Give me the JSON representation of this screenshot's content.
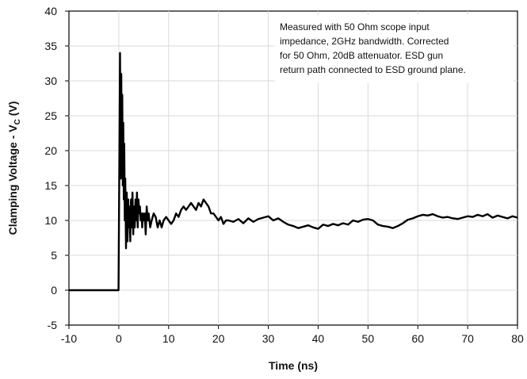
{
  "chart_data": {
    "type": "line",
    "title": "",
    "xlabel": "Time (ns)",
    "ylabel": {
      "prefix": "Clamping Voltage - V",
      "subscript": "C",
      "suffix": " (V)"
    },
    "xlim": [
      -10,
      80
    ],
    "ylim": [
      -5,
      40
    ],
    "x_ticks": [
      -10,
      0,
      10,
      20,
      30,
      40,
      50,
      60,
      70,
      80
    ],
    "y_ticks": [
      -5,
      0,
      5,
      10,
      15,
      20,
      25,
      30,
      35,
      40
    ],
    "grid": true,
    "legend": "none",
    "annotation": [
      "Measured with 50 Ohm scope input",
      "impedance, 2GHz bandwidth. Corrected",
      "for 50 Ohm, 20dB attenuator. ESD gun",
      "return path connected to ESD ground plane."
    ],
    "series": [
      {
        "color": "#000000",
        "x": [
          -10,
          -0.3,
          -0.05,
          0.1,
          0.25,
          0.4,
          0.5,
          0.6,
          0.7,
          0.8,
          0.9,
          1.0,
          1.1,
          1.2,
          1.3,
          1.45,
          1.6,
          1.75,
          1.9,
          2.0,
          2.15,
          2.3,
          2.45,
          2.6,
          2.75,
          2.9,
          3.05,
          3.2,
          3.35,
          3.5,
          3.65,
          3.8,
          3.95,
          4.1,
          4.25,
          4.4,
          4.55,
          4.7,
          4.85,
          5.0,
          5.2,
          5.4,
          5.6,
          5.8,
          6.0,
          6.3,
          6.6,
          7.0,
          7.4,
          7.8,
          8.2,
          8.6,
          9.0,
          9.5,
          10,
          10.5,
          11,
          11.5,
          12,
          12.5,
          13,
          13.5,
          14,
          14.5,
          15,
          15.5,
          16,
          16.5,
          17,
          17.5,
          18,
          18.5,
          19,
          19.5,
          20,
          20.5,
          21,
          21.5,
          22,
          23,
          24,
          25,
          26,
          27,
          28,
          29,
          30,
          31,
          32,
          33,
          34,
          35,
          36,
          37,
          38,
          39,
          40,
          41,
          42,
          43,
          44,
          45,
          46,
          47,
          48,
          49,
          50,
          51,
          52,
          53,
          54,
          55,
          56,
          57,
          58,
          59,
          60,
          61,
          62,
          63,
          64,
          65,
          66,
          67,
          68,
          69,
          70,
          71,
          72,
          73,
          74,
          75,
          76,
          77,
          78,
          79,
          80
        ],
        "y": [
          0,
          0,
          0,
          17,
          34,
          16,
          31,
          17,
          28,
          15,
          24,
          13,
          21,
          10,
          16,
          6,
          14,
          7,
          13,
          9,
          12,
          7,
          13,
          9,
          14,
          8,
          12,
          9,
          13,
          10,
          14,
          9,
          13,
          11,
          12,
          10,
          11,
          9,
          11,
          10,
          11,
          8,
          12,
          10,
          11,
          9,
          10,
          11,
          10.5,
          9,
          10,
          9,
          10,
          10.5,
          10,
          9.5,
          10,
          11,
          10.5,
          11.5,
          12,
          11.5,
          12,
          12.5,
          12,
          11.5,
          12.5,
          12,
          13,
          12.5,
          12,
          11,
          11,
          10.5,
          10,
          10.5,
          9.5,
          10,
          10,
          9.8,
          10.2,
          9.6,
          10.3,
          9.8,
          10.2,
          10.4,
          10.6,
          10,
          10.3,
          9.8,
          9.4,
          9.2,
          8.9,
          9.1,
          9.3,
          9.0,
          8.8,
          9.4,
          9.2,
          9.5,
          9.3,
          9.6,
          9.4,
          10,
          9.8,
          10.1,
          10.2,
          10,
          9.4,
          9.2,
          9.1,
          8.9,
          9.2,
          9.6,
          10.1,
          10.3,
          10.6,
          10.8,
          10.7,
          10.9,
          10.6,
          10.4,
          10.5,
          10.3,
          10.2,
          10.4,
          10.6,
          10.5,
          10.8,
          10.6,
          10.9,
          10.4,
          10.7,
          10.5,
          10.3,
          10.6,
          10.4
        ]
      }
    ]
  }
}
